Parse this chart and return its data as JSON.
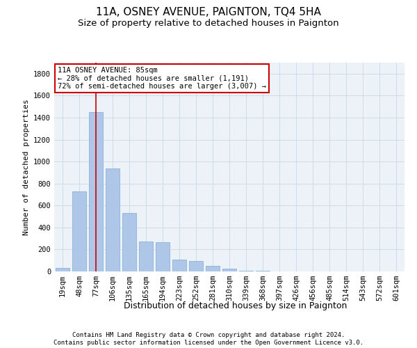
{
  "title": "11A, OSNEY AVENUE, PAIGNTON, TQ4 5HA",
  "subtitle": "Size of property relative to detached houses in Paignton",
  "xlabel": "Distribution of detached houses by size in Paignton",
  "ylabel": "Number of detached properties",
  "categories": [
    "19sqm",
    "48sqm",
    "77sqm",
    "106sqm",
    "135sqm",
    "165sqm",
    "194sqm",
    "223sqm",
    "252sqm",
    "281sqm",
    "310sqm",
    "339sqm",
    "368sqm",
    "397sqm",
    "426sqm",
    "456sqm",
    "485sqm",
    "514sqm",
    "543sqm",
    "572sqm",
    "601sqm"
  ],
  "values": [
    30,
    730,
    1450,
    940,
    530,
    270,
    265,
    110,
    95,
    50,
    25,
    5,
    5,
    0,
    0,
    0,
    0,
    0,
    0,
    0,
    0
  ],
  "bar_color": "#aec6e8",
  "bar_edge_color": "#7aadd4",
  "grid_color": "#c8d8e8",
  "background_color": "#ffffff",
  "plot_bg_color": "#edf2f8",
  "annotation_text": "11A OSNEY AVENUE: 85sqm\n← 28% of detached houses are smaller (1,191)\n72% of semi-detached houses are larger (3,007) →",
  "annotation_box_color": "#ffffff",
  "annotation_box_edge_color": "#cc0000",
  "marker_bar_index": 2,
  "ylim": [
    0,
    1900
  ],
  "yticks": [
    0,
    200,
    400,
    600,
    800,
    1000,
    1200,
    1400,
    1600,
    1800
  ],
  "footer_line1": "Contains HM Land Registry data © Crown copyright and database right 2024.",
  "footer_line2": "Contains public sector information licensed under the Open Government Licence v3.0.",
  "title_fontsize": 11,
  "subtitle_fontsize": 9.5,
  "xlabel_fontsize": 9,
  "ylabel_fontsize": 8,
  "tick_fontsize": 7.5,
  "annotation_fontsize": 7.5,
  "footer_fontsize": 6.5
}
